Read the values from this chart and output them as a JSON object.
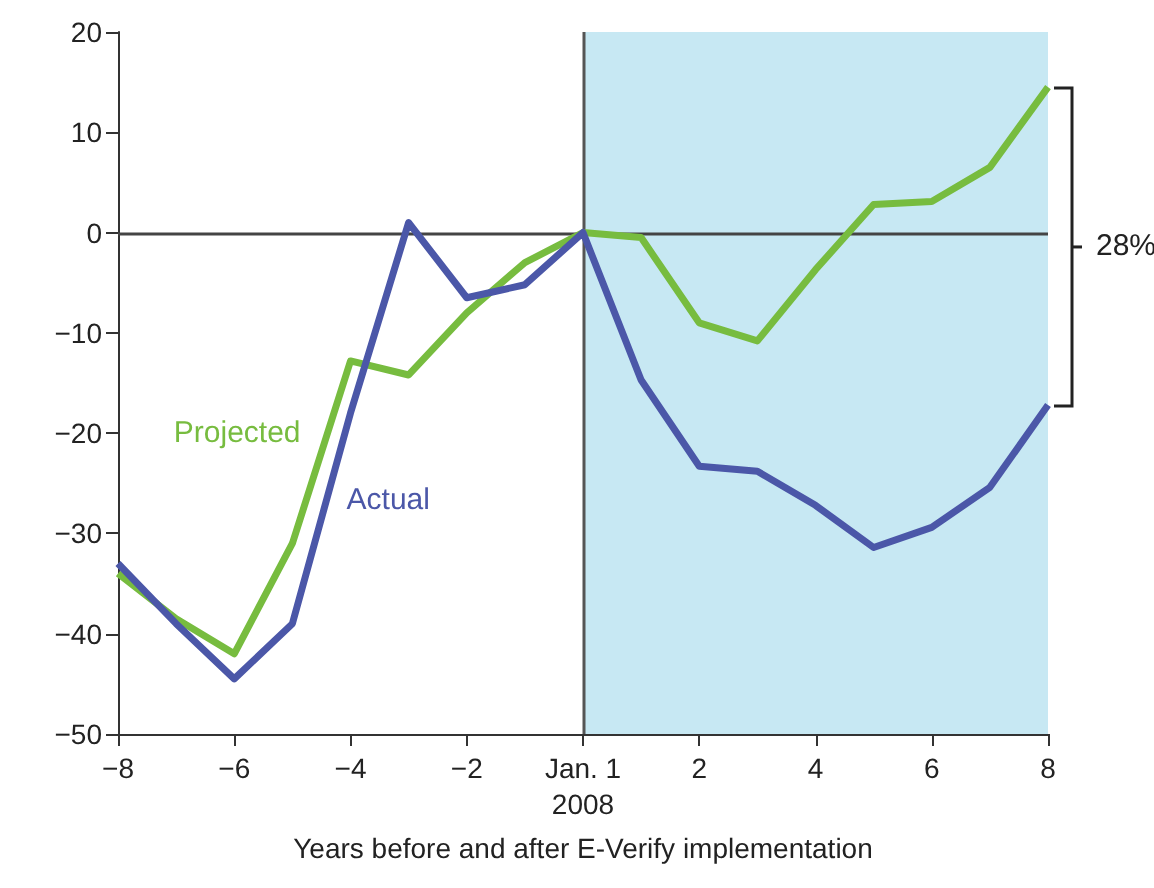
{
  "chart_data": {
    "type": "line",
    "xlabel": "Years before and after E-Verify implementation",
    "x": [
      -8,
      -7,
      -6,
      -5,
      -4,
      -3,
      -2,
      -1,
      0,
      1,
      2,
      3,
      4,
      5,
      6,
      7,
      8
    ],
    "series": [
      {
        "name": "Projected",
        "color": "#77bc3f",
        "values": [
          -34,
          -38.5,
          -42,
          -31,
          -12.8,
          -14.2,
          -8,
          -3,
          0,
          -0.5,
          -9,
          -10.8,
          -3.7,
          2.8,
          3.1,
          6.5,
          14.5
        ]
      },
      {
        "name": "Actual",
        "color": "#4b57a8",
        "values": [
          -33,
          -39,
          -44.5,
          -39,
          -18,
          1,
          -6.5,
          -5.2,
          0,
          -14.7,
          -23.3,
          -23.8,
          -27.2,
          -31.4,
          -29.4,
          -25.4,
          -17.2
        ]
      }
    ],
    "xlim": [
      -8,
      8
    ],
    "xticks": [
      -8,
      -6,
      -4,
      -2,
      {
        "value": 0,
        "label": "Jan. 1\n2008"
      },
      2,
      4,
      6,
      8
    ],
    "ylim": [
      -50,
      20
    ],
    "yticks": [
      -50,
      -40,
      -30,
      -20,
      -10,
      0,
      10,
      20
    ],
    "bands": [
      {
        "axis": "x",
        "from": 0,
        "to": 8,
        "color": "#c7e8f3"
      }
    ],
    "ref_lines": [
      {
        "axis": "y",
        "value": 0,
        "color": "#444444"
      },
      {
        "axis": "x",
        "value": 0,
        "color": "#555555"
      }
    ],
    "annotations": [
      "28%"
    ],
    "grid": false,
    "legend": false,
    "marker": "none",
    "line_style": "solid"
  }
}
